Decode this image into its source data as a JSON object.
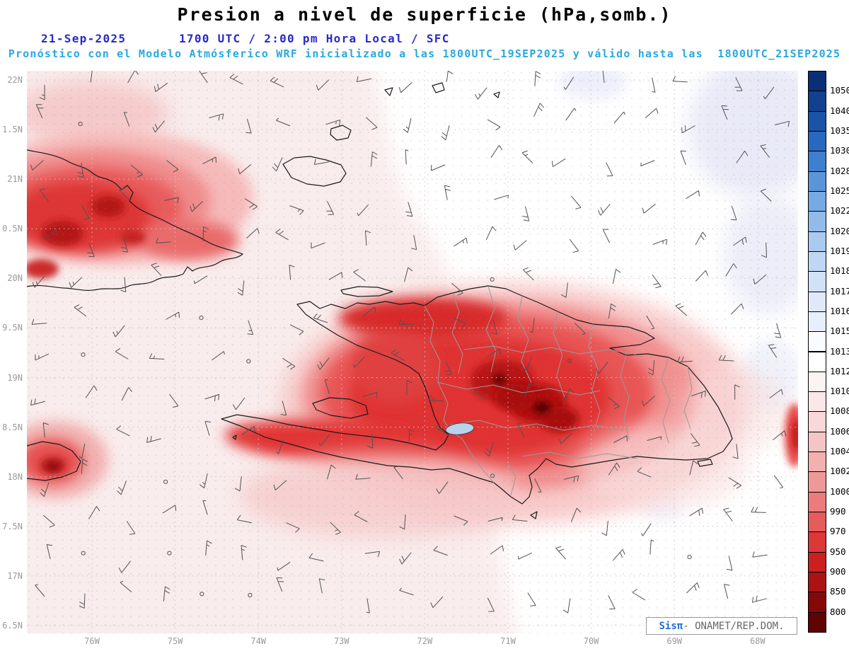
{
  "header": {
    "title": "Presion a nivel de superficie (hPa,somb.)",
    "date": "21-Sep-2025",
    "time_line": "1700 UTC / 2:00 pm Hora Local / SFC",
    "forecast_line": "Pronóstico con el Modelo Atmósferico WRF inicializado a las 1800UTC_19SEP2025 y válido hasta las  1800UTC_21SEP2025"
  },
  "map": {
    "lat_labels": [
      "22N",
      "1.5N",
      "21N",
      "0.5N",
      "20N",
      "9.5N",
      "19N",
      "8.5N",
      "18N",
      "7.5N",
      "17N",
      "6.5N"
    ],
    "lon_labels": [
      "76W",
      "75W",
      "74W",
      "73W",
      "72W",
      "71W",
      "70W",
      "69W",
      "68W"
    ],
    "features": [
      "cuba-coast",
      "hispaniola-coast",
      "jamaica-coast",
      "tortuga-island",
      "gonave-island",
      "great-inagua-island",
      "little-inagua-island",
      "turks-islands",
      "saona-island",
      "beata-island",
      "navassa-island",
      "lake-enriquillo",
      "dr-province-borders",
      "wind-barbs",
      "pressure-shading"
    ]
  },
  "colorbar": {
    "unit": "hPa",
    "tick_labels": [
      "1050",
      "1040",
      "1035",
      "1030",
      "1028",
      "1025",
      "1022",
      "1020",
      "1019",
      "1018",
      "1017",
      "1016",
      "1015",
      "1013",
      "1012",
      "1010",
      "1008",
      "1006",
      "1004",
      "1002",
      "1000",
      "990",
      "970",
      "950",
      "900",
      "850",
      "800"
    ],
    "colors": [
      "#0a2f78",
      "#11418f",
      "#1954a8",
      "#2a68be",
      "#3e7fce",
      "#5a95d9",
      "#77a9e2",
      "#92bbe9",
      "#aacbef",
      "#bfd7f3",
      "#d1e1f7",
      "#dfe9fa",
      "#e8effc",
      "#fafbfe",
      "#ffffff",
      "#fdf3f3",
      "#fbe7e7",
      "#f8d8d8",
      "#f5c5c5",
      "#f2b0b0",
      "#ef9898",
      "#ec7c7c",
      "#e65b5b",
      "#dd3737",
      "#cb2020",
      "#ab1313",
      "#860909",
      "#5f0303"
    ]
  },
  "watermark": {
    "brand": "Sisπ",
    "separator": "- ",
    "org": "ONAMET/REP.DOM."
  },
  "colors": {
    "title_color": "#000000",
    "date_color": "#2929cc",
    "forecast_color": "#29a8e0",
    "axis_color": "#9a9a9a",
    "land_outline": "#1a1a1a",
    "wind_barb_color": "#525252",
    "brand_color": "#1f6fd4",
    "low_pressure_core": "#5f0303",
    "high_pressure_tint": "#e8effc"
  }
}
